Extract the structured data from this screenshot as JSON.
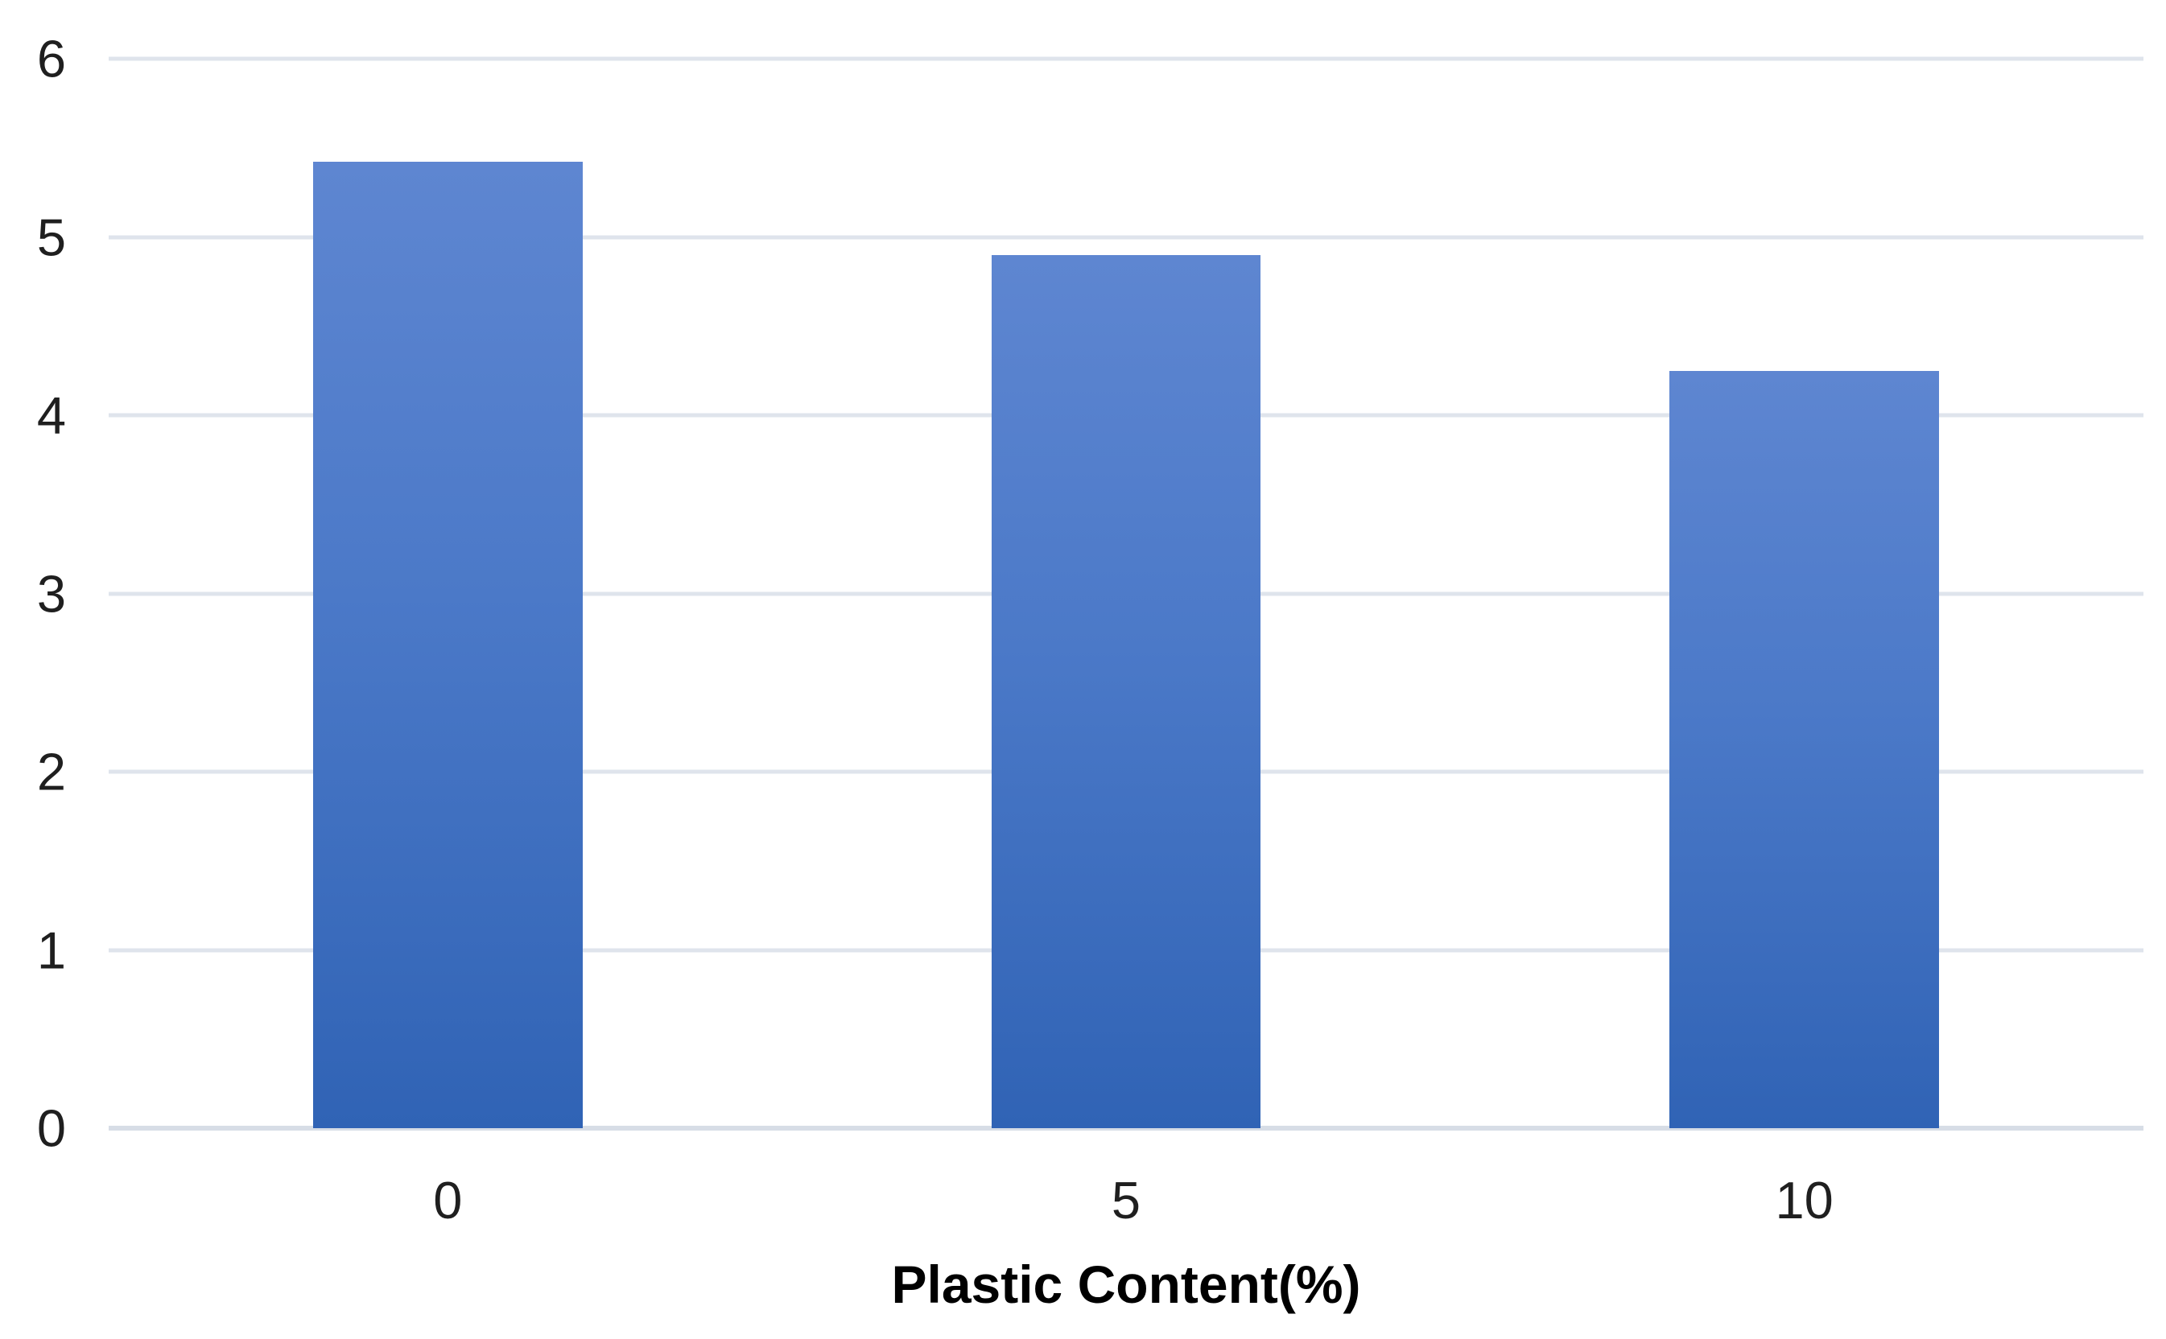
{
  "chart_data": {
    "type": "bar",
    "title": "",
    "categories": [
      "0",
      "5",
      "10"
    ],
    "values": [
      5.42,
      4.9,
      4.25
    ],
    "xlabel": "Plastic Content(%)",
    "ylabel": "",
    "ylim": [
      0,
      6
    ],
    "yticks": [
      0,
      1,
      2,
      3,
      4,
      5,
      6
    ],
    "grid": true,
    "legend_position": "none",
    "colors": {
      "bar_gradient_top": "#5e86d1",
      "bar_gradient_mid": "#4b79c8",
      "bar_gradient_bottom": "#3063b5",
      "gridline": "#dfe4ec",
      "baseline": "#d7dde6",
      "tick_text": "#1f1f1f",
      "axis_title_text": "#000000",
      "background": "#ffffff"
    }
  }
}
